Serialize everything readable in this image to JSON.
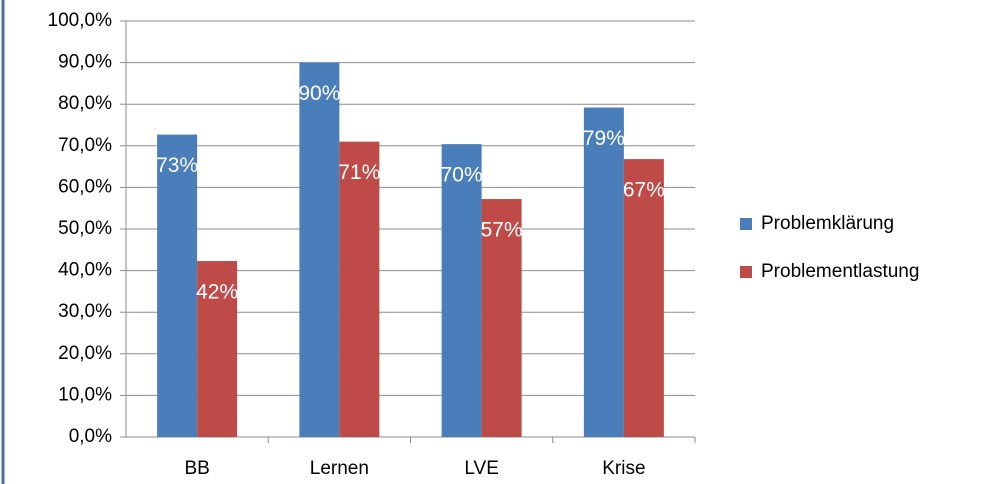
{
  "chart_data": {
    "type": "bar",
    "categories": [
      "BB",
      "Lernen",
      "LVE",
      "Krise"
    ],
    "series": [
      {
        "name": "Problemklärung",
        "color": "#4a7ebb",
        "values": [
          72.7,
          90,
          70.4,
          79.2
        ],
        "value_labels": [
          "73%",
          "90%",
          "70%",
          "79%"
        ]
      },
      {
        "name": "Problementlastung",
        "color": "#be4b48",
        "values": [
          42.3,
          71,
          57.2,
          66.8
        ],
        "value_labels": [
          "42%",
          "71%",
          "57%",
          "67%"
        ]
      }
    ],
    "ylim": [
      0,
      100
    ],
    "yticks": [
      {
        "value": 0,
        "label": "0,0%"
      },
      {
        "value": 10,
        "label": "10,0%"
      },
      {
        "value": 20,
        "label": "20,0%"
      },
      {
        "value": 30,
        "label": "30,0%"
      },
      {
        "value": 40,
        "label": "40,0%"
      },
      {
        "value": 50,
        "label": "50,0%"
      },
      {
        "value": 60,
        "label": "60,0%"
      },
      {
        "value": 70,
        "label": "70,0%"
      },
      {
        "value": 80,
        "label": "80,0%"
      },
      {
        "value": 90,
        "label": "90,0%"
      },
      {
        "value": 100,
        "label": "100,0%"
      }
    ],
    "grid": true,
    "legend": "right"
  }
}
